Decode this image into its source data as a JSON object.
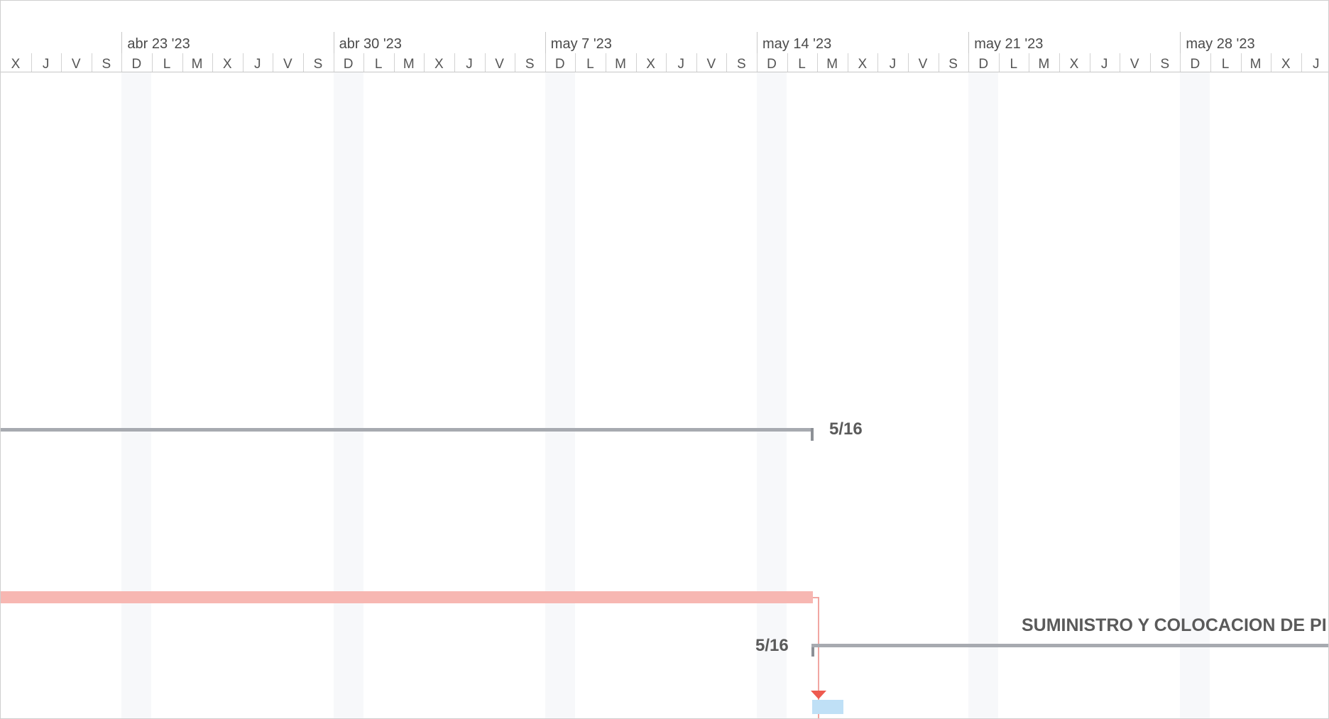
{
  "timescale": {
    "weeks": [
      "abr 23 '23",
      "abr 30 '23",
      "may 7 '23",
      "may 14 '23",
      "may 21 '23",
      "may 28 '23"
    ],
    "days": [
      "X",
      "J",
      "V",
      "S",
      "D",
      "L",
      "M",
      "X",
      "J",
      "V",
      "S",
      "D",
      "L",
      "M",
      "X",
      "J",
      "V",
      "S",
      "D",
      "L",
      "M",
      "X",
      "J",
      "V",
      "S",
      "D",
      "L",
      "M",
      "X",
      "J",
      "V",
      "S",
      "D",
      "L",
      "M",
      "X",
      "J",
      "V",
      "S",
      "D",
      "L",
      "M",
      "X",
      "J"
    ]
  },
  "bars": {
    "summary_1": {
      "finish_label": "5/16"
    },
    "summary_2": {
      "start_label": "5/16",
      "task_name": "SUMINISTRO Y COLOCACION DE PI"
    }
  },
  "colors": {
    "critical_bar": "#f7b7b2",
    "summary_bar": "#a7aab0",
    "link_arrow": "#ee5a4f",
    "task_bar": "#bfe0f6"
  }
}
